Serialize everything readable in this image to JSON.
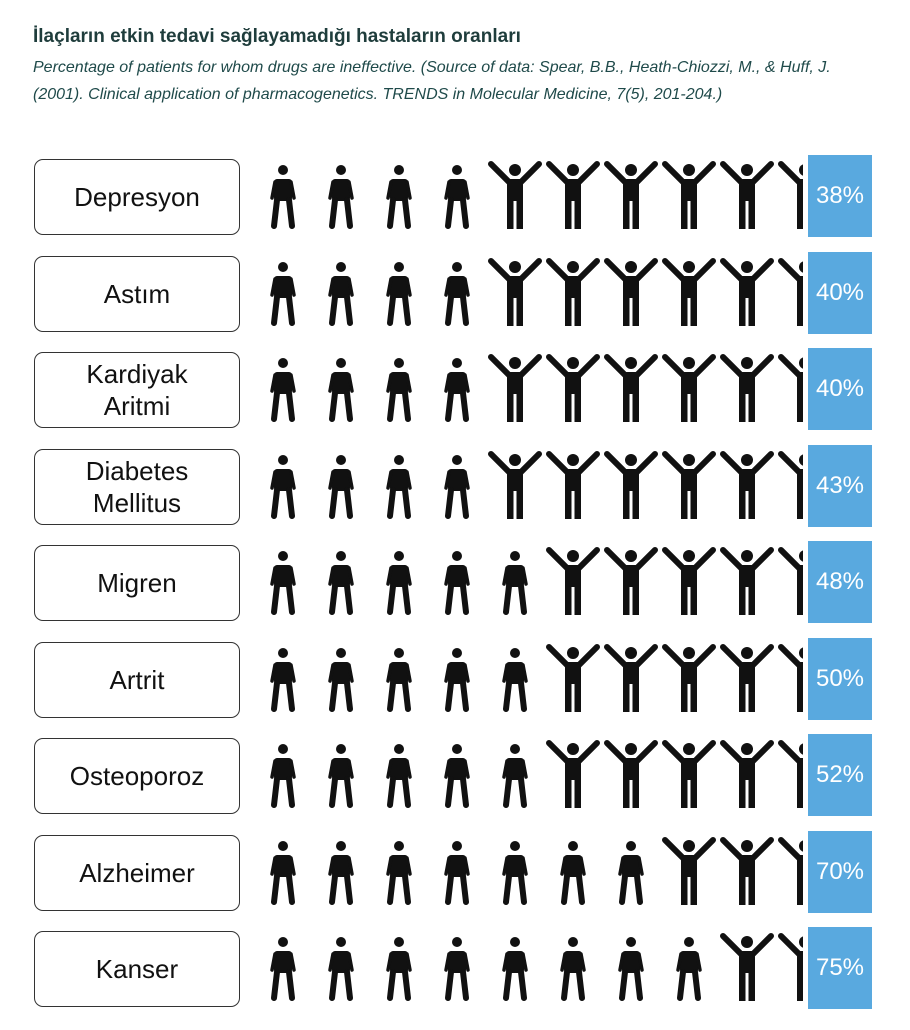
{
  "title": "İlaçların etkin tedavi sağlayamadığı hastaların oranları",
  "subtitle": "Percentage of patients for whom drugs are ineffective. (Source of data: Spear, B.B., Heath-Chiozzi, M., & Huff, J. (2001). Clinical application of pharmacogenetics. TRENDS in Molecular Medicine, 7(5), 201-204.)",
  "colors": {
    "icon": "#111111",
    "badge": "#59a9df",
    "title": "#1f3d3c"
  },
  "icons": {
    "ineffective": "person-standing-icon",
    "effective": "person-arms-raised-icon"
  },
  "chart_data": {
    "type": "pictograph",
    "units_per_row": 10,
    "categories": [
      "Depresyon",
      "Astım",
      "Kardiyak\nAritmi",
      "Diabetes\nMellitus",
      "Migren",
      "Artrit",
      "Osteoporoz",
      "Alzheimer",
      "Kanser"
    ],
    "values": [
      38,
      40,
      40,
      43,
      48,
      50,
      52,
      70,
      75
    ],
    "labels": [
      "38%",
      "40%",
      "40%",
      "43%",
      "48%",
      "50%",
      "52%",
      "70%",
      "75%"
    ],
    "ineffective_icons": [
      4,
      4,
      4,
      4,
      5,
      5,
      5,
      7,
      8
    ]
  }
}
